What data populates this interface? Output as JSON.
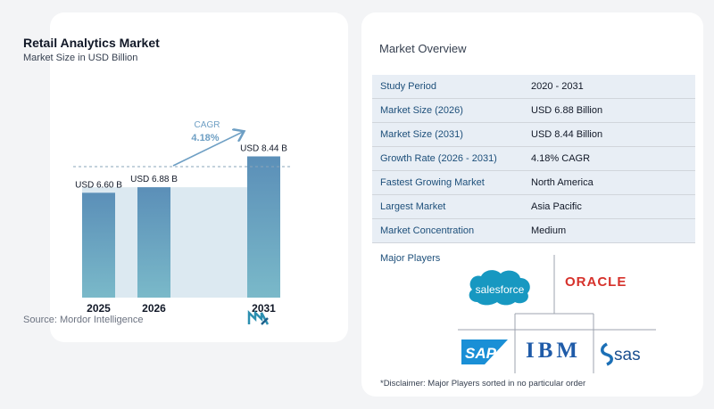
{
  "chart": {
    "title": "Retail Analytics Market",
    "subtitle": "Market Size in USD Billion",
    "source": "Source:  Mordor Intelligence",
    "cagr_label": "CAGR",
    "cagr_value": "4.18%"
  },
  "chart_data": {
    "type": "bar",
    "categories": [
      "2025",
      "2026",
      "2031"
    ],
    "values": [
      6.6,
      6.88,
      8.44
    ],
    "data_labels": [
      "USD 6.60 B",
      "USD 6.88 B",
      "USD 8.44 B"
    ],
    "title": "Retail Analytics Market",
    "subtitle": "Market Size in USD Billion",
    "xlabel": "",
    "ylabel": "",
    "grid": false,
    "colors": {
      "bar_top": "#5b8fb8",
      "bar_bottom": "#7ab9c9",
      "band": "#dce9f1",
      "arrow": "#6e9fc4"
    }
  },
  "overview": {
    "title": "Market Overview",
    "rows": [
      {
        "label": "Study Period",
        "value": "2020 - 2031"
      },
      {
        "label": "Market Size (2026)",
        "value": "USD 6.88 Billion"
      },
      {
        "label": "Market Size (2031)",
        "value": "USD 8.44 Billion"
      },
      {
        "label": "Growth Rate (2026 - 2031)",
        "value": "4.18% CAGR"
      },
      {
        "label": "Fastest Growing Market",
        "value": "North America"
      },
      {
        "label": "Largest Market",
        "value": "Asia Pacific"
      },
      {
        "label": "Market Concentration",
        "value": "Medium"
      }
    ],
    "players_title": "Major Players",
    "players": [
      "salesforce",
      "ORACLE",
      "SAP",
      "IBM",
      "sas"
    ],
    "disclaimer": "*Disclaimer: Major Players sorted in no particular order"
  }
}
